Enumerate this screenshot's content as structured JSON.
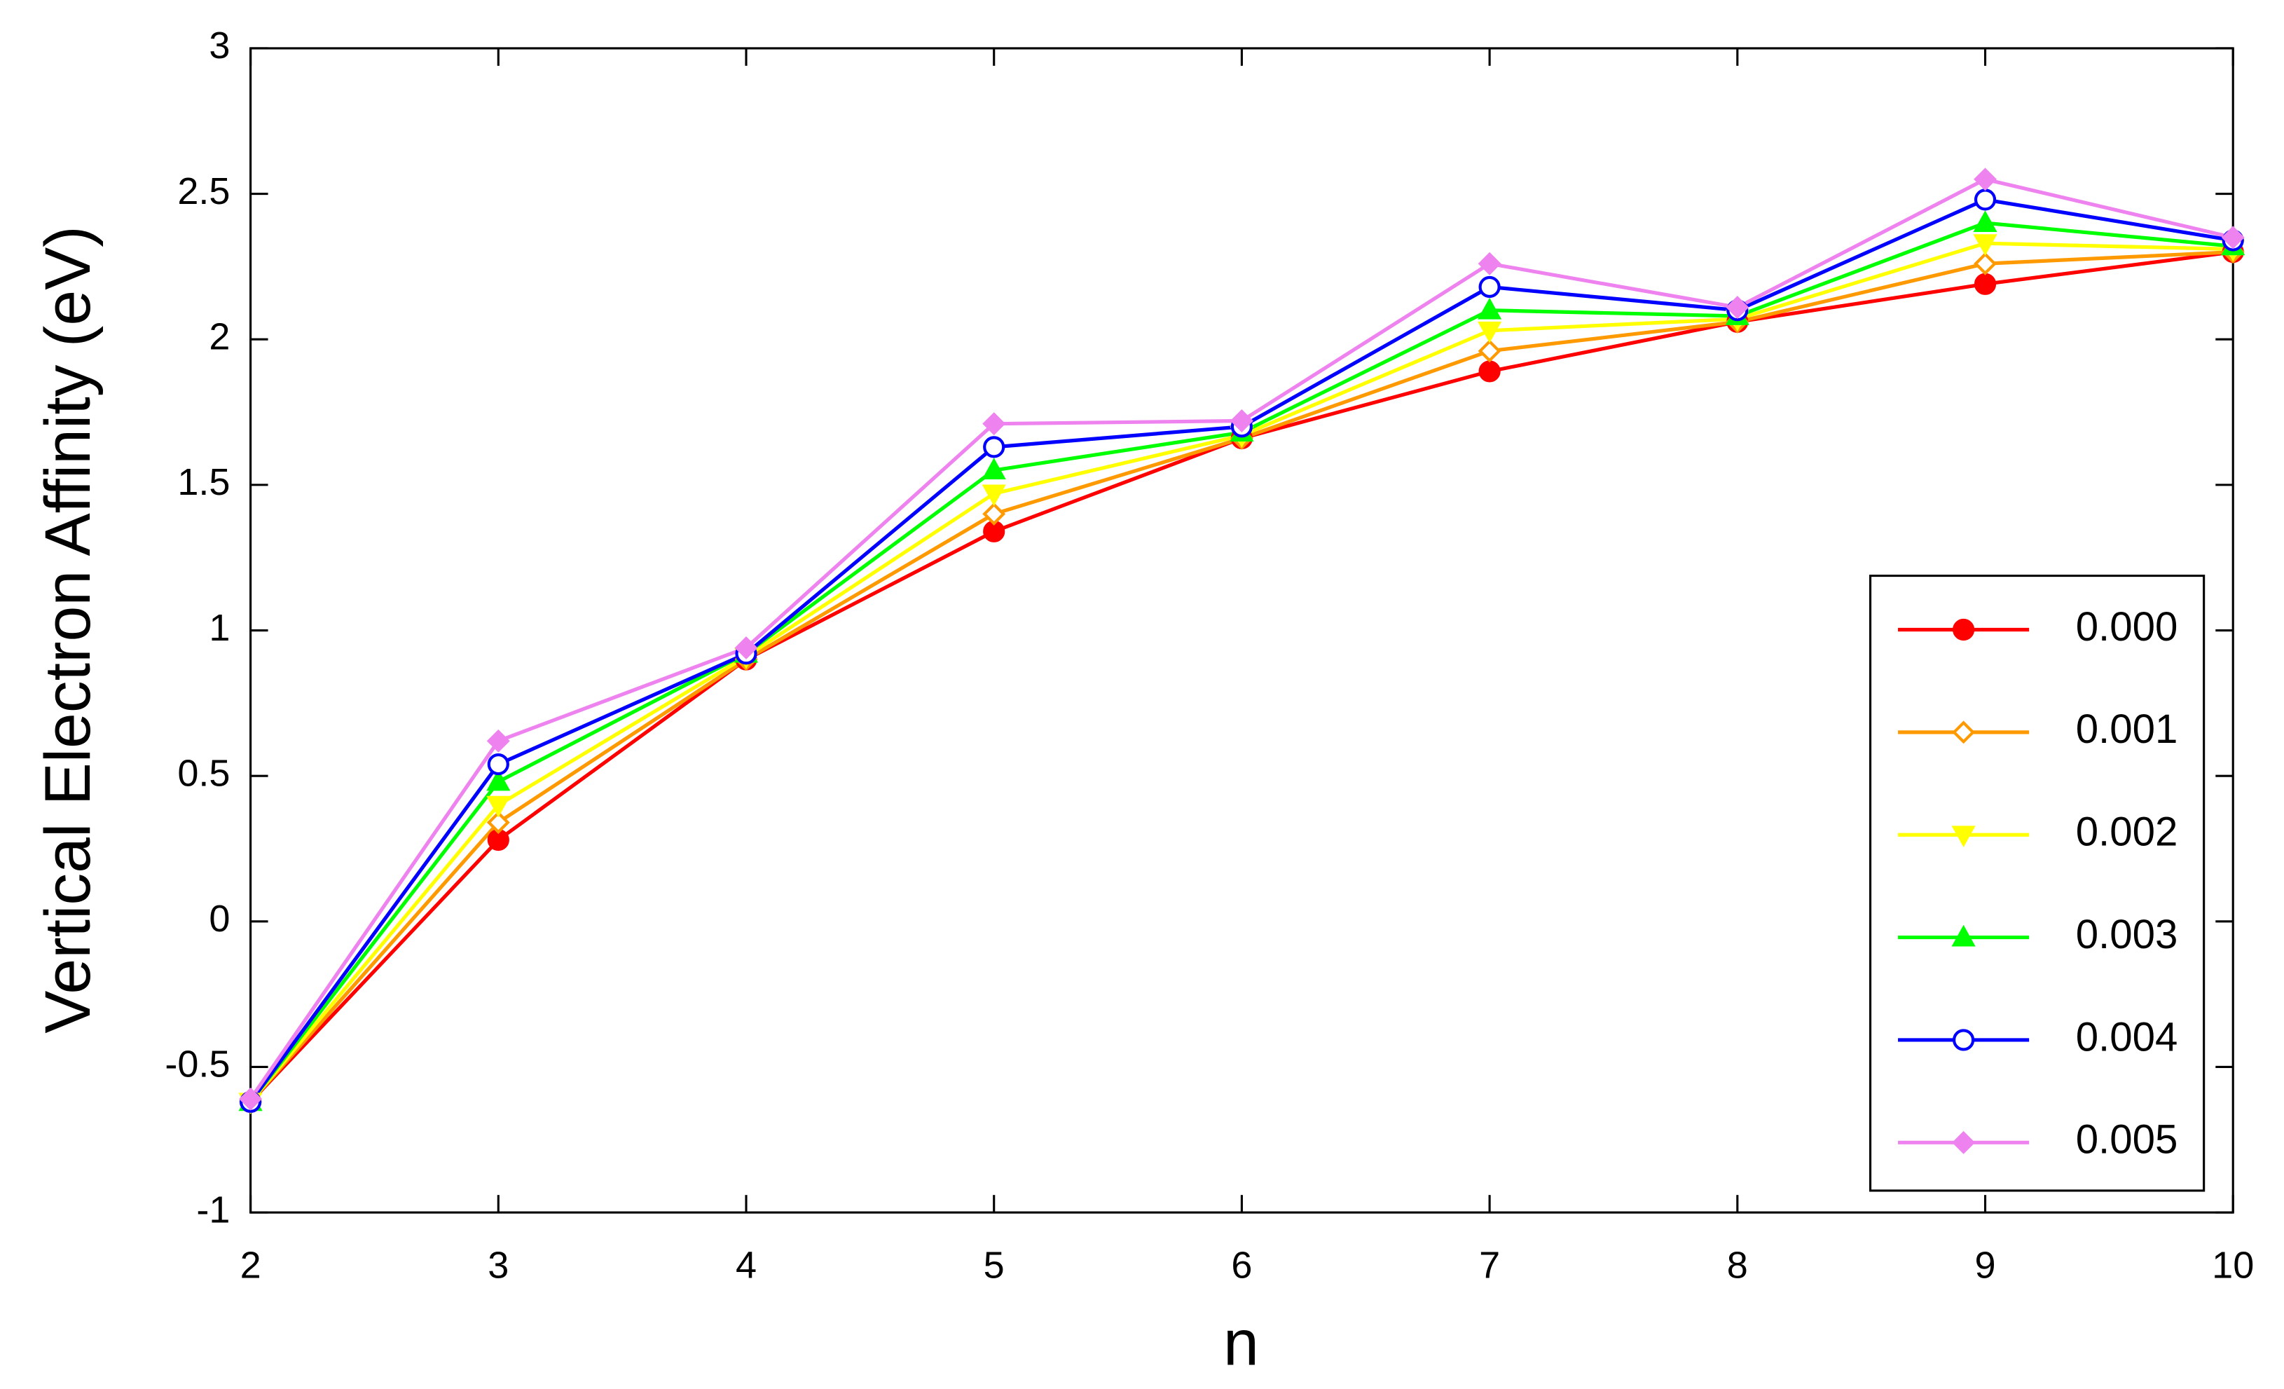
{
  "chart_data": {
    "type": "line",
    "x_label": "n",
    "y_label": "Vertical Electron Affinity (eV)",
    "x": [
      2,
      3,
      4,
      5,
      6,
      7,
      8,
      9,
      10
    ],
    "xlim": [
      2,
      10
    ],
    "xticks": [
      2,
      3,
      4,
      5,
      6,
      7,
      8,
      9,
      10
    ],
    "ylim": [
      -1,
      3
    ],
    "yticks": [
      -1,
      -0.5,
      0,
      0.5,
      1,
      1.5,
      2,
      2.5,
      3
    ],
    "grid": false,
    "legend_position": "lower right",
    "series": [
      {
        "name": "0.000",
        "color": "#ff0000",
        "marker": "circle",
        "marker_filled": true,
        "values": [
          -0.62,
          0.28,
          0.9,
          1.34,
          1.66,
          1.89,
          2.06,
          2.19,
          2.3
        ]
      },
      {
        "name": "0.001",
        "color": "#ff9900",
        "marker": "diamond",
        "marker_filled": false,
        "values": [
          -0.62,
          0.34,
          0.9,
          1.4,
          1.66,
          1.96,
          2.06,
          2.26,
          2.3
        ]
      },
      {
        "name": "0.002",
        "color": "#ffff00",
        "marker": "triangle-down",
        "marker_filled": true,
        "values": [
          -0.62,
          0.4,
          0.91,
          1.47,
          1.67,
          2.03,
          2.07,
          2.33,
          2.31
        ]
      },
      {
        "name": "0.003",
        "color": "#00ff00",
        "marker": "triangle-up",
        "marker_filled": true,
        "values": [
          -0.62,
          0.48,
          0.92,
          1.55,
          1.68,
          2.1,
          2.08,
          2.4,
          2.32
        ]
      },
      {
        "name": "0.004",
        "color": "#0000ff",
        "marker": "circle",
        "marker_filled": false,
        "values": [
          -0.62,
          0.54,
          0.92,
          1.63,
          1.7,
          2.18,
          2.1,
          2.48,
          2.34
        ]
      },
      {
        "name": "0.005",
        "color": "#ee82ee",
        "marker": "diamond",
        "marker_filled": true,
        "values": [
          -0.61,
          0.62,
          0.94,
          1.71,
          1.72,
          2.26,
          2.11,
          2.55,
          2.35
        ]
      }
    ]
  }
}
